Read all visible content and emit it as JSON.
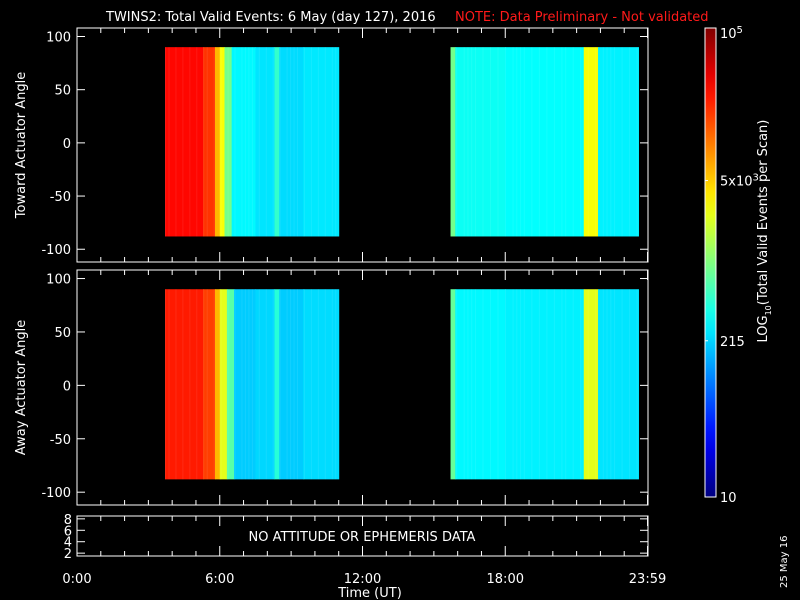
{
  "chart_data": {
    "type": "heatmap",
    "title": "TWINS2: Total Valid Events:  6 May (day 127), 2016",
    "note": "NOTE: Data Preliminary - Not validated",
    "xlabel": "Time (UT)",
    "xlim": [
      0,
      24
    ],
    "x_ticks": [
      {
        "v": 0,
        "label": "0:00"
      },
      {
        "v": 6,
        "label": "6:00"
      },
      {
        "v": 12,
        "label": "12:00"
      },
      {
        "v": 18,
        "label": "18:00"
      },
      {
        "v": 23.98,
        "label": "23:59"
      }
    ],
    "panels": [
      {
        "ylabel": "Toward Actuator Angle",
        "ylim": [
          -112,
          108
        ],
        "y_ticks": [
          100,
          50,
          0,
          -50,
          -100
        ],
        "angle_range": [
          -88,
          90
        ],
        "bands": [
          [
            3.7,
            5.3,
            30000
          ],
          [
            5.3,
            5.8,
            20000
          ],
          [
            5.8,
            6.0,
            6000
          ],
          [
            6.0,
            6.2,
            3000
          ],
          [
            6.2,
            6.5,
            900
          ],
          [
            6.5,
            7.5,
            300
          ],
          [
            7.5,
            8.3,
            250
          ],
          [
            8.3,
            8.5,
            500
          ],
          [
            8.5,
            9.5,
            230
          ],
          [
            9.5,
            11.0,
            260
          ],
          [
            15.7,
            15.9,
            900
          ],
          [
            15.9,
            18.0,
            350
          ],
          [
            18.0,
            21.3,
            320
          ],
          [
            21.3,
            21.9,
            3000
          ],
          [
            21.9,
            23.6,
            280
          ]
        ]
      },
      {
        "ylabel": "Away Actuator Angle",
        "ylim": [
          -112,
          108
        ],
        "y_ticks": [
          100,
          50,
          0,
          -50,
          -100
        ],
        "angle_range": [
          -88,
          90
        ],
        "bands": [
          [
            3.7,
            5.3,
            25000
          ],
          [
            5.3,
            5.8,
            18000
          ],
          [
            5.8,
            6.0,
            6000
          ],
          [
            6.0,
            6.3,
            2500
          ],
          [
            6.3,
            6.6,
            700
          ],
          [
            6.6,
            7.5,
            200
          ],
          [
            7.5,
            8.3,
            220
          ],
          [
            8.3,
            8.5,
            450
          ],
          [
            8.5,
            9.5,
            200
          ],
          [
            9.5,
            11.0,
            230
          ],
          [
            15.7,
            15.9,
            800
          ],
          [
            15.9,
            18.0,
            300
          ],
          [
            18.0,
            21.3,
            280
          ],
          [
            21.3,
            21.9,
            2500
          ],
          [
            21.9,
            23.6,
            250
          ]
        ]
      }
    ],
    "ephemeris_panel": {
      "y_ticks": [
        8,
        6,
        4,
        2
      ],
      "ylim": [
        1.5,
        8.5
      ],
      "message": "NO ATTITUDE OR EPHEMERIS DATA"
    },
    "colorbar": {
      "label": "LOG10(Total Valid Events per Scan)",
      "label_main": "LOG",
      "label_sub": "10",
      "label_rest": "(Total Valid Events per Scan)",
      "range": [
        10,
        100000
      ],
      "ticks": [
        {
          "v": 100000,
          "label": "10",
          "sup": "5"
        },
        {
          "v": 5000,
          "label": "5x10",
          "sup": "3"
        },
        {
          "v": 215,
          "label": "215",
          "sup": ""
        },
        {
          "v": 10,
          "label": "10",
          "sup": ""
        }
      ]
    },
    "date_stamp": "25 May 16"
  }
}
